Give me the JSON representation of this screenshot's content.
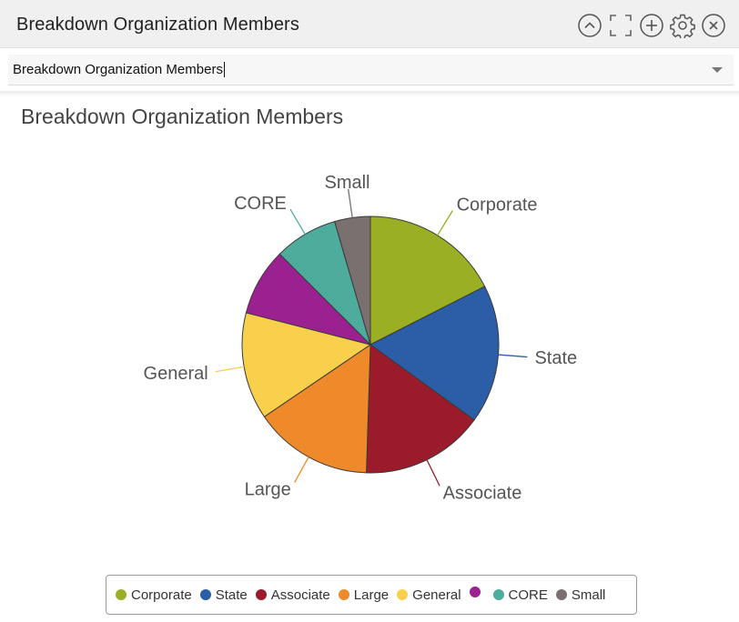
{
  "panel": {
    "title": "Breakdown Organization Members",
    "toolbar": [
      {
        "name": "collapse-icon"
      },
      {
        "name": "fullscreen-icon"
      },
      {
        "name": "add-icon"
      },
      {
        "name": "gear-icon"
      },
      {
        "name": "close-icon"
      }
    ]
  },
  "selector": {
    "value": "Breakdown Organization Members"
  },
  "chart_data": {
    "type": "pie",
    "title": "Breakdown Organization Members",
    "categories": [
      "Corporate",
      "State",
      "Associate",
      "Large",
      "General",
      "",
      "CORE",
      "Small"
    ],
    "values": [
      17.5,
      17.5,
      15.5,
      15.0,
      13.5,
      8.5,
      8.0,
      4.5
    ],
    "colors": [
      "#9aaf23",
      "#2b5ea7",
      "#9b1b2b",
      "#ef8a2b",
      "#f8d04b",
      "#9c2190",
      "#4dac9c",
      "#7a7070"
    ],
    "legend": "bottom-center"
  }
}
